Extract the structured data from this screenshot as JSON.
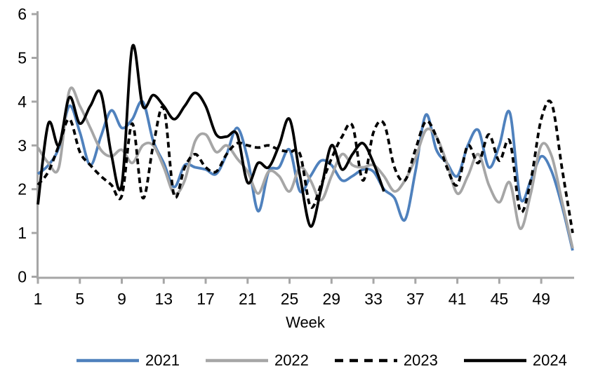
{
  "chart_data": {
    "type": "line",
    "title": "",
    "xlabel": "Week",
    "ylabel": "",
    "ylim": [
      0,
      6
    ],
    "xlim": [
      1,
      52
    ],
    "yticks": [
      0,
      1,
      2,
      3,
      4,
      5,
      6
    ],
    "xticks": [
      1,
      5,
      9,
      13,
      17,
      21,
      25,
      29,
      33,
      37,
      41,
      45,
      49
    ],
    "grid": "off",
    "legend_position": "bottom",
    "axis_color": "#a6a6a6",
    "background": "#ffffff",
    "x_start": 1,
    "x_step": 1,
    "series": [
      {
        "name": "2021",
        "color": "#4f81bd",
        "line_style": "solid",
        "values": [
          2.35,
          2.55,
          2.95,
          3.9,
          3.3,
          2.55,
          3.2,
          3.8,
          3.4,
          3.6,
          4.0,
          3.1,
          2.6,
          2.05,
          2.55,
          2.5,
          2.45,
          2.35,
          2.8,
          3.4,
          2.7,
          1.5,
          2.4,
          2.5,
          2.9,
          1.95,
          2.3,
          2.65,
          2.55,
          2.2,
          2.3,
          2.45,
          2.4,
          2.0,
          1.8,
          1.3,
          2.4,
          3.7,
          2.9,
          2.6,
          2.3,
          3.0,
          3.35,
          2.5,
          3.0,
          3.75,
          1.8,
          2.2,
          2.75,
          2.4,
          1.6,
          0.6
        ]
      },
      {
        "name": "2022",
        "color": "#a6a6a6",
        "line_style": "solid",
        "values": [
          2.95,
          2.6,
          2.5,
          4.25,
          3.9,
          3.4,
          2.9,
          2.75,
          2.9,
          2.6,
          3.0,
          3.0,
          2.5,
          1.9,
          2.2,
          3.1,
          3.25,
          2.85,
          3.0,
          2.7,
          2.4,
          1.9,
          2.4,
          2.3,
          1.95,
          2.5,
          2.2,
          1.75,
          2.3,
          2.8,
          2.55,
          2.5,
          2.55,
          2.3,
          1.95,
          2.2,
          2.7,
          3.35,
          3.2,
          2.6,
          1.9,
          2.3,
          2.8,
          2.1,
          1.7,
          2.15,
          1.1,
          1.9,
          3.0,
          2.75,
          1.7,
          0.65
        ]
      },
      {
        "name": "2023",
        "color": "#000000",
        "line_style": "dashed",
        "values": [
          2.1,
          2.4,
          3.0,
          3.6,
          2.85,
          2.55,
          2.3,
          2.1,
          1.85,
          3.5,
          1.8,
          3.0,
          3.85,
          1.85,
          2.5,
          2.8,
          2.5,
          2.4,
          2.8,
          3.05,
          3.0,
          2.95,
          3.0,
          2.9,
          2.85,
          2.8,
          1.6,
          2.1,
          2.7,
          3.2,
          3.45,
          2.2,
          3.3,
          3.5,
          2.5,
          2.2,
          2.9,
          3.55,
          3.2,
          2.5,
          2.1,
          3.0,
          2.6,
          3.25,
          2.65,
          3.1,
          1.5,
          2.2,
          3.6,
          3.95,
          2.45,
          1.0
        ]
      },
      {
        "name": "2024",
        "color": "#000000",
        "line_style": "solid",
        "values": [
          1.65,
          3.5,
          3.0,
          4.1,
          3.5,
          3.9,
          4.2,
          2.8,
          2.1,
          5.25,
          3.9,
          4.15,
          3.9,
          3.6,
          3.9,
          4.2,
          3.9,
          3.25,
          3.2,
          3.25,
          2.15,
          2.6,
          2.5,
          3.0,
          3.6,
          2.3,
          1.15,
          2.0,
          3.0,
          2.45,
          2.8,
          3.05,
          2.6,
          1.95
        ]
      }
    ]
  }
}
